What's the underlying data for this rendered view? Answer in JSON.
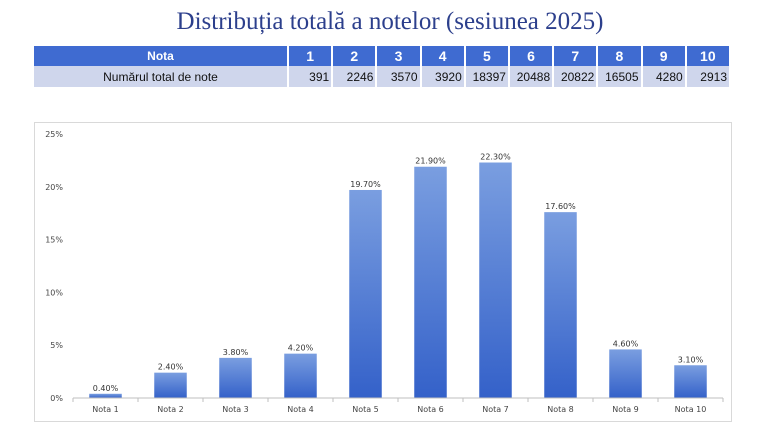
{
  "title": "Distribuția totală a notelor (sesiunea 2025)",
  "table": {
    "header_label": "Nota",
    "row_label": "Numărul total de note",
    "grades": [
      "1",
      "2",
      "3",
      "4",
      "5",
      "6",
      "7",
      "8",
      "9",
      "10"
    ],
    "counts": [
      "391",
      "2246",
      "3570",
      "3920",
      "18397",
      "20488",
      "20822",
      "16505",
      "4280",
      "2913"
    ]
  },
  "chart_data": {
    "type": "bar",
    "categories": [
      "Nota 1",
      "Nota 2",
      "Nota 3",
      "Nota 4",
      "Nota 5",
      "Nota 6",
      "Nota 7",
      "Nota 8",
      "Nota 9",
      "Nota 10"
    ],
    "values": [
      0.4,
      2.4,
      3.8,
      4.2,
      19.7,
      21.9,
      22.3,
      17.6,
      4.6,
      3.1
    ],
    "data_labels": [
      "0.40%",
      "2.40%",
      "3.80%",
      "4.20%",
      "19.70%",
      "21.90%",
      "22.30%",
      "17.60%",
      "4.60%",
      "3.10%"
    ],
    "yticks": [
      0,
      5,
      10,
      15,
      20,
      25
    ],
    "ytick_labels": [
      "0%",
      "5%",
      "10%",
      "15%",
      "20%",
      "25%"
    ],
    "ylim": [
      0,
      25
    ],
    "grid": false,
    "legend": "none",
    "colors": {
      "bar_top": "#7a9ee0",
      "bar_bottom": "#3461c9",
      "axis": "#bfbfbf"
    }
  }
}
